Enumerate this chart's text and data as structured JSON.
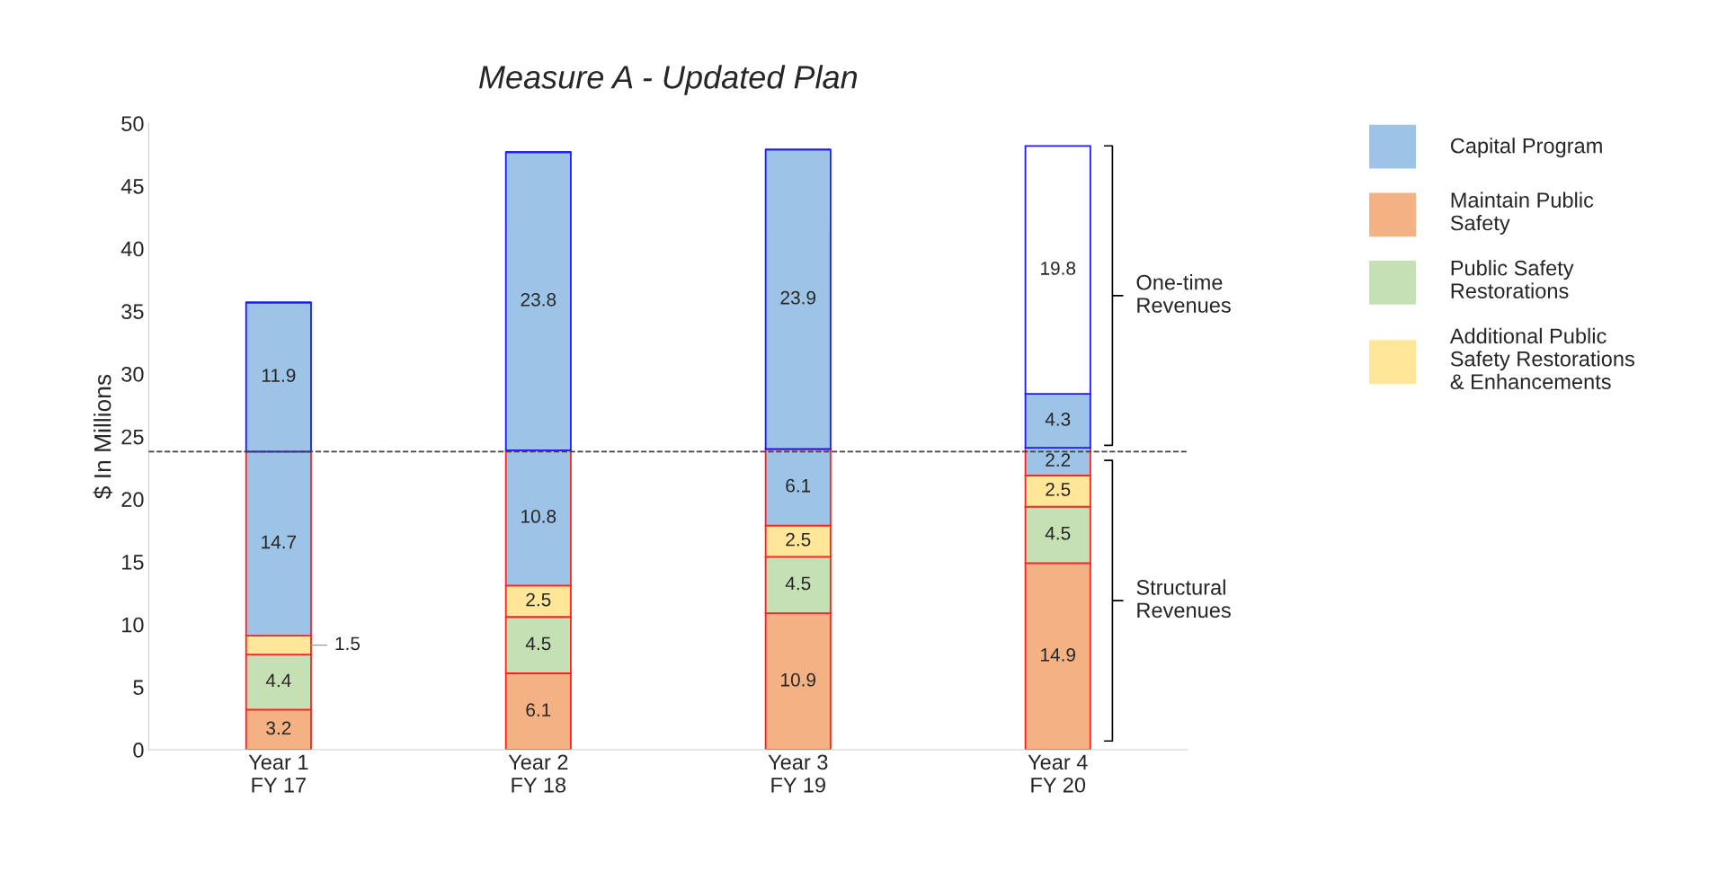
{
  "chart_data": {
    "type": "bar",
    "title": "Measure A - Updated Plan",
    "ylabel": "$ In Millions",
    "categories": [
      "Year 1\nFY 17",
      "Year 2\nFY 18",
      "Year 3\nFY 19",
      "Year 4\nFY 20"
    ],
    "stacked": true,
    "data_labels": true,
    "series": [
      {
        "name": "Maintain Public\nSafety",
        "color": "#f4b183",
        "values": [
          3.2,
          6.1,
          10.9,
          14.9
        ]
      },
      {
        "name": "Public Safety\nRestorations",
        "color": "#c5e0b4",
        "values": [
          4.4,
          4.5,
          4.5,
          4.5
        ]
      },
      {
        "name": "Additional Public\nSafety Restorations\n& Enhancements",
        "color": "#ffe699",
        "values": [
          1.5,
          2.5,
          2.5,
          2.5
        ]
      },
      {
        "name": "Capital Program",
        "color": "#9dc3e6",
        "values": [
          14.7,
          10.8,
          6.1,
          2.2
        ]
      },
      {
        "color": "#9dc3e6",
        "values": [
          11.9,
          23.8,
          23.9,
          4.3
        ]
      },
      {
        "color": "#ffffff",
        "values": [
          null,
          null,
          null,
          19.8
        ]
      }
    ],
    "ylim": [
      0,
      50
    ],
    "yticks": [
      0,
      5,
      10,
      15,
      20,
      25,
      30,
      35,
      40,
      45,
      50
    ],
    "ref_lines": [
      {
        "axis": "y",
        "value": 23.8,
        "line_style": "dashed",
        "color": "#404040"
      }
    ],
    "annotations": [
      "One-time\nRevenues",
      "Structural\nRevenues"
    ],
    "grid": false,
    "legend": "top right"
  }
}
